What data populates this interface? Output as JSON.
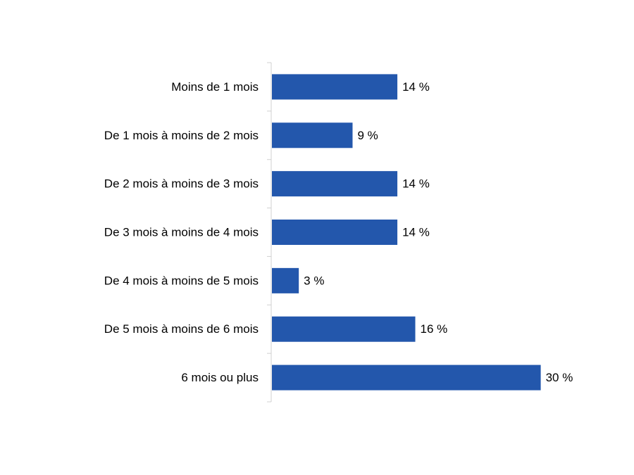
{
  "chart_data": {
    "type": "bar",
    "orientation": "horizontal",
    "title": "",
    "xlabel": "",
    "ylabel": "",
    "categories": [
      "Moins de 1 mois",
      "De 1 mois à moins de 2 mois",
      "De 2 mois à moins de 3 mois",
      "De 3 mois à moins de 4 mois",
      "De 4 mois à moins de 5 mois",
      "De 5 mois à moins de 6 mois",
      "6 mois ou plus"
    ],
    "values": [
      14,
      9,
      14,
      14,
      3,
      16,
      30
    ],
    "value_labels": [
      "14 %",
      "9 %",
      "14 %",
      "14 %",
      "3 %",
      "16 %",
      "30 %"
    ],
    "unit": "%",
    "xlim": [
      0,
      32
    ],
    "grid": false,
    "legend": "none",
    "colors": {
      "bar": "#2357AC",
      "axis": "#d0d0d0",
      "text": "#000000"
    }
  }
}
